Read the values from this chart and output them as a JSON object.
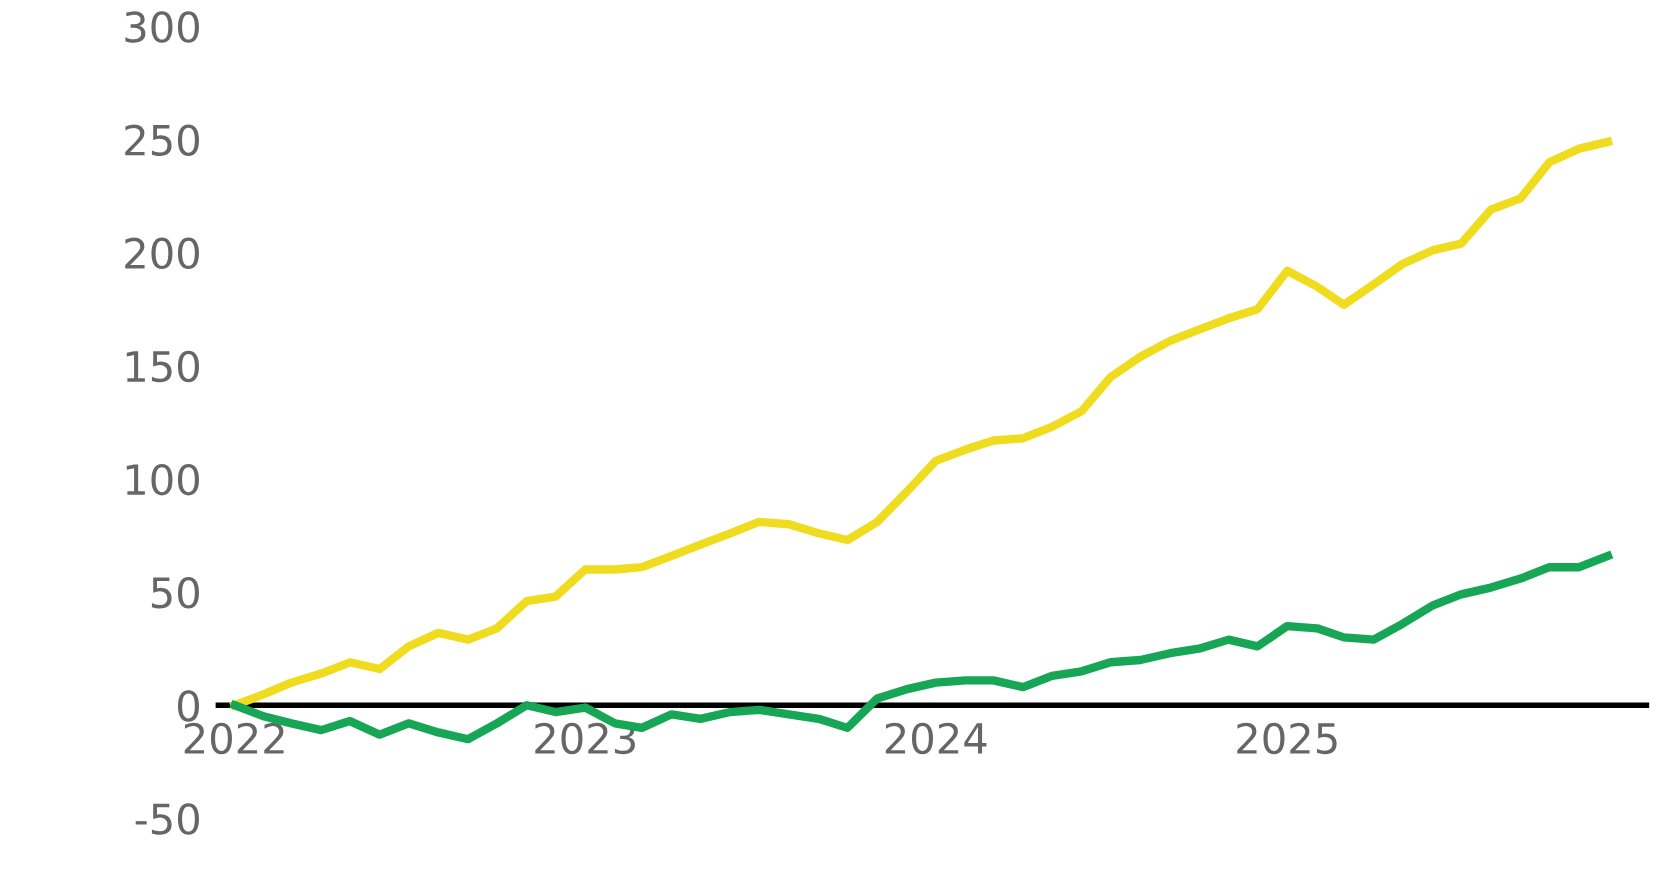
{
  "chart_data": {
    "type": "line",
    "x": [
      "2022-01",
      "2022-02",
      "2022-03",
      "2022-04",
      "2022-05",
      "2022-06",
      "2022-07",
      "2022-08",
      "2022-09",
      "2022-10",
      "2022-11",
      "2022-12",
      "2023-01",
      "2023-02",
      "2023-03",
      "2023-04",
      "2023-05",
      "2023-06",
      "2023-07",
      "2023-08",
      "2023-09",
      "2023-10",
      "2023-11",
      "2023-12",
      "2024-01",
      "2024-02",
      "2024-03",
      "2024-04",
      "2024-05",
      "2024-06",
      "2024-07",
      "2024-08",
      "2024-09",
      "2024-10",
      "2024-11",
      "2024-12",
      "2025-01",
      "2025-02",
      "2025-03",
      "2025-04",
      "2025-05",
      "2025-06",
      "2025-07",
      "2025-08",
      "2025-09",
      "2025-10",
      "2025-11",
      "2025-12"
    ],
    "series": [
      {
        "color": "#f0dc1e",
        "values": [
          0,
          5,
          10,
          14,
          19,
          16,
          26,
          32,
          29,
          34,
          46,
          48,
          60,
          60,
          61,
          66,
          71,
          76,
          81,
          80,
          76,
          73,
          81,
          94,
          108,
          113,
          117,
          118,
          123,
          130,
          145,
          154,
          161,
          166,
          171,
          175,
          192,
          185,
          177,
          186,
          195,
          201,
          204,
          219,
          224,
          240,
          246,
          249
        ]
      },
      {
        "color": "#17a655",
        "values": [
          0,
          -5,
          -8,
          -11,
          -7,
          -13,
          -8,
          -12,
          -15,
          -8,
          0,
          -3,
          -1,
          -8,
          -10,
          -4,
          -6,
          -3,
          -2,
          -4,
          -6,
          -10,
          3,
          7,
          10,
          11,
          11,
          8,
          13,
          15,
          19,
          20,
          23,
          25,
          29,
          26,
          35,
          34,
          30,
          29,
          36,
          44,
          49,
          52,
          56,
          61,
          61,
          66
        ]
      }
    ],
    "xlim": [
      "2021-12-15",
      "2026-01-10"
    ],
    "xticks": [
      {
        "value": "2022-01-01",
        "label": "2022"
      },
      {
        "value": "2023-01-01",
        "label": "2023"
      },
      {
        "value": "2024-01-01",
        "label": "2024"
      },
      {
        "value": "2025-01-01",
        "label": "2025"
      }
    ],
    "ylim": [
      -50,
      300
    ],
    "yticks": [
      -50,
      0,
      50,
      100,
      150,
      200,
      250,
      300
    ],
    "marker": "none",
    "line_style": "solid"
  }
}
